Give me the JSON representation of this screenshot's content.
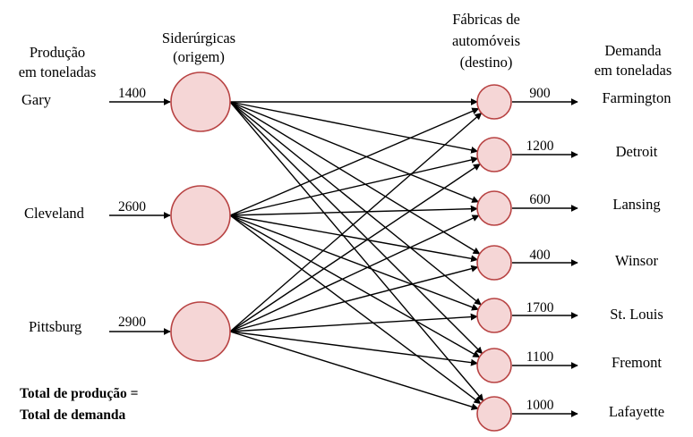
{
  "headers": {
    "production": [
      "Produção",
      "em toneladas"
    ],
    "sources": [
      "Siderúrgicas",
      "(origem)"
    ],
    "destinations": [
      "Fábricas de",
      "automóveis",
      "(destino)"
    ],
    "demand": [
      "Demanda",
      "em toneladas"
    ]
  },
  "sources": [
    {
      "name": "Gary",
      "supply": "1400"
    },
    {
      "name": "Cleveland",
      "supply": "2600"
    },
    {
      "name": "Pittsburg",
      "supply": "2900"
    }
  ],
  "destinations": [
    {
      "name": "Farmington",
      "demand": "900"
    },
    {
      "name": "Detroit",
      "demand": "1200"
    },
    {
      "name": "Lansing",
      "demand": "600"
    },
    {
      "name": "Winsor",
      "demand": "400"
    },
    {
      "name": "St. Louis",
      "demand": "1700"
    },
    {
      "name": "Fremont",
      "demand": "1100"
    },
    {
      "name": "Lafayette",
      "demand": "1000"
    }
  ],
  "note": [
    "Total de produção =",
    "Total de demanda"
  ],
  "colors": {
    "node_fill": "#f5d6d6",
    "node_stroke": "#b84343",
    "edge": "#000000"
  }
}
